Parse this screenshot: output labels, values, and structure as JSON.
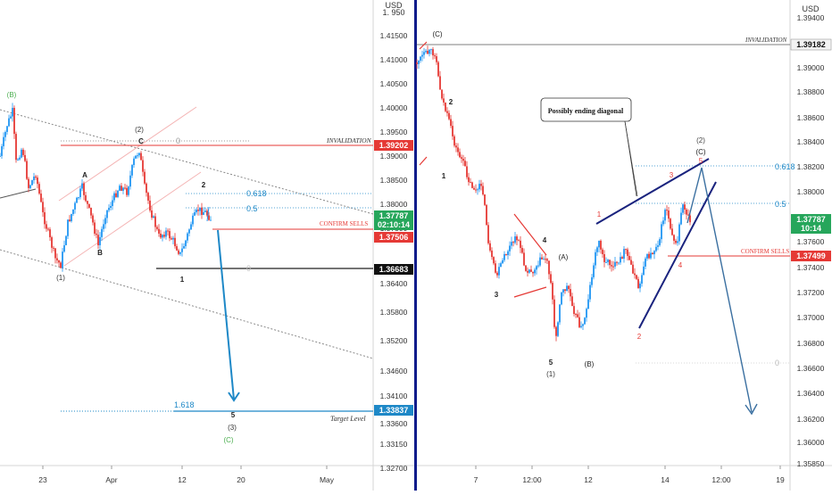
{
  "colors": {
    "up": "#26a69a",
    "down": "#ef5350",
    "up_candle": "#2196f3",
    "down_candle": "#e53935",
    "wave_label": "#222222",
    "wave_red": "#e53935",
    "green": "#4caf50",
    "blue": "#1e88c7",
    "navy": "#1a237e",
    "price_tag_green": "#26a65b",
    "divider": "#0d1b8a"
  },
  "chart_data": [
    {
      "type": "candlestick",
      "title": "",
      "ylabel": "USD",
      "ylim": [
        1.327,
        1.4187
      ],
      "x_ticks": [
        "23",
        "Apr",
        "12",
        "20",
        "May"
      ],
      "y_ticks": [
        "1.41500",
        "1.41000",
        "1.40500",
        "1.40000",
        "1.39500",
        "1.39000",
        "1.38500",
        "1.38000",
        "1.37500",
        "1.36400",
        "1.35800",
        "1.35200",
        "1.34600",
        "1.34100",
        "1.33600",
        "1.33150",
        "1.32700"
      ],
      "axis_top_label": "1. 950",
      "price_tags": [
        {
          "label": "1.39202",
          "style": "red",
          "value": 1.39202
        },
        {
          "label": "1.37787",
          "sublabel": "02:10:14",
          "style": "green",
          "value": 1.37787
        },
        {
          "label": "1.37506",
          "style": "red",
          "value": 1.37506
        },
        {
          "label": "1.36683",
          "style": "black",
          "value": 1.36683
        },
        {
          "label": "1.33837",
          "style": "blue",
          "value": 1.33837
        }
      ],
      "levels": [
        {
          "label": "INVALIDATION",
          "value": 1.39202
        },
        {
          "label": "CONFIRM SELLS",
          "value": 1.37506
        },
        {
          "label": "Target Level",
          "value": 1.33837
        }
      ],
      "fib_labels": [
        "0",
        "0.618",
        "0.5",
        "0",
        "1.618"
      ],
      "wave_labels": [
        "(B)",
        "A",
        "B",
        "(1)",
        "(2)",
        "C",
        "2",
        "1",
        "5",
        "(3)",
        "(C)"
      ]
    },
    {
      "type": "candlestick",
      "title": "",
      "ylabel": "USD",
      "ylim": [
        1.3579,
        1.3956
      ],
      "x_ticks": [
        "7",
        "12:00",
        "12",
        "14",
        "12:00",
        "19"
      ],
      "y_ticks": [
        "1.39400",
        "1.39000",
        "1.38800",
        "1.38600",
        "1.38400",
        "1.38200",
        "1.38000",
        "1.37600",
        "1.37400",
        "1.37200",
        "1.37000",
        "1.36800",
        "1.36600",
        "1.36400",
        "1.36200",
        "1.36000",
        "1.35850"
      ],
      "axis_top_label": "1.39400",
      "price_tags": [
        {
          "label": "1.39182",
          "style": "gray",
          "value": 1.39182
        },
        {
          "label": "1.37787",
          "sublabel": "10:14",
          "style": "green",
          "value": 1.37787
        },
        {
          "label": "1.37499",
          "style": "red",
          "value": 1.37499
        }
      ],
      "levels": [
        {
          "label": "INVALIDATION",
          "value": 1.39182
        },
        {
          "label": "CONFIRM SELLS",
          "value": 1.37499
        }
      ],
      "fib_labels": [
        "0.618",
        "0.5",
        "0"
      ],
      "annotation": "Possibly ending diagonal",
      "wave_labels": [
        "(C)",
        "2",
        "1",
        "3",
        "4",
        "5",
        "(1)",
        "(A)",
        "(B)",
        "1",
        "2",
        "3",
        "4",
        "5",
        "(2)",
        "(C)"
      ]
    }
  ]
}
